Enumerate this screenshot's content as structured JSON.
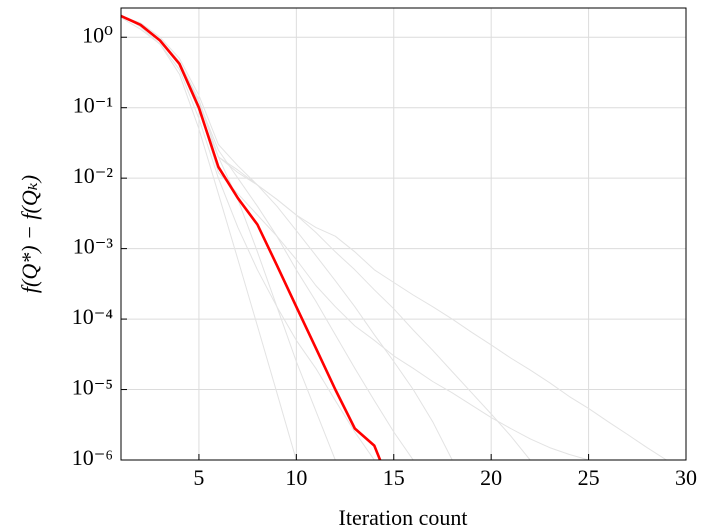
{
  "chart_data": {
    "type": "line",
    "log_y": true,
    "grid": true,
    "xlabel": "Iteration count",
    "ylabel": "f(Q*) − f(Qₖ)",
    "xlim": [
      1,
      30
    ],
    "xticks": [
      5,
      10,
      15,
      20,
      25,
      30
    ],
    "ylim": [
      1e-06,
      2.6
    ],
    "yticks": [
      {
        "value": 1,
        "label": "10⁰"
      },
      {
        "value": 0.1,
        "label": "10⁻¹"
      },
      {
        "value": 0.01,
        "label": "10⁻²"
      },
      {
        "value": 0.001,
        "label": "10⁻³"
      },
      {
        "value": 0.0001,
        "label": "10⁻⁴"
      },
      {
        "value": 1e-05,
        "label": "10⁻⁵"
      },
      {
        "value": 1e-06,
        "label": "10⁻⁶"
      }
    ],
    "series": [
      {
        "color": "#e3e3e3",
        "x": [
          1,
          2,
          3,
          4,
          5,
          6,
          7,
          8,
          9,
          10
        ],
        "values": [
          2.1,
          1.4,
          0.8,
          0.3,
          0.05,
          0.006,
          0.0007,
          8e-05,
          9e-06,
          1e-06
        ]
      },
      {
        "color": "#e3e3e3",
        "x": [
          1,
          2,
          3,
          4,
          5,
          6,
          7,
          8,
          9,
          10,
          11,
          12
        ],
        "values": [
          2,
          1.5,
          0.9,
          0.4,
          0.09,
          0.02,
          0.005,
          0.0009,
          0.00015,
          2.5e-05,
          5e-06,
          1e-06
        ]
      },
      {
        "color": "#e3e3e3",
        "x": [
          1,
          2,
          3,
          4,
          5,
          6,
          7,
          8,
          9,
          10,
          11,
          12,
          13,
          14,
          15,
          16
        ],
        "values": [
          2,
          1.5,
          0.9,
          0.45,
          0.12,
          0.025,
          0.01,
          0.004,
          0.0015,
          0.0005,
          0.00018,
          6e-05,
          2e-05,
          7e-06,
          2.5e-06,
          1e-06
        ]
      },
      {
        "color": "#e3e3e3",
        "x": [
          1,
          2,
          3,
          4,
          5,
          6,
          7,
          8,
          9,
          10,
          11,
          12,
          13,
          14,
          15,
          16,
          17,
          18
        ],
        "values": [
          2,
          1.6,
          1,
          0.5,
          0.15,
          0.03,
          0.015,
          0.008,
          0.004,
          0.0018,
          0.0008,
          0.00035,
          0.00015,
          6e-05,
          2.5e-05,
          1e-05,
          3.5e-06,
          1e-06
        ]
      },
      {
        "color": "#e3e3e3",
        "x": [
          1,
          2,
          3,
          4,
          5,
          6,
          7,
          8,
          9,
          10,
          11,
          12,
          13,
          14,
          15,
          16,
          17,
          18,
          19,
          20,
          21,
          22
        ],
        "values": [
          2,
          1.5,
          0.9,
          0.45,
          0.12,
          0.02,
          0.012,
          0.008,
          0.005,
          0.003,
          0.0017,
          0.0009,
          0.0005,
          0.00026,
          0.00014,
          7e-05,
          3.6e-05,
          1.8e-05,
          9e-06,
          4.5e-06,
          2.2e-06,
          1e-06
        ]
      },
      {
        "color": "#e3e3e3",
        "x": [
          1,
          2,
          3,
          4,
          5,
          6,
          7,
          8,
          9,
          10,
          11,
          12,
          13,
          14,
          15,
          16,
          17,
          18,
          19,
          20,
          21,
          22,
          23,
          24,
          25,
          26,
          27,
          28,
          29
        ],
        "values": [
          2,
          1.5,
          0.95,
          0.45,
          0.13,
          0.02,
          0.013,
          0.008,
          0.005,
          0.003,
          0.002,
          0.0015,
          0.0009,
          0.0005,
          0.00033,
          0.00022,
          0.00015,
          0.0001,
          6.5e-05,
          4.3e-05,
          2.8e-05,
          1.9e-05,
          1.25e-05,
          8e-06,
          5.4e-06,
          3.5e-06,
          2.3e-06,
          1.5e-06,
          1e-06
        ]
      },
      {
        "color": "#e3e3e3",
        "x": [
          1,
          2,
          3,
          4,
          5,
          6,
          7,
          8,
          9,
          10,
          11,
          12,
          13,
          14,
          15,
          16,
          17,
          18,
          19,
          20,
          21,
          22,
          23,
          24,
          25
        ],
        "values": [
          2,
          1.5,
          0.9,
          0.4,
          0.1,
          0.012,
          0.006,
          0.003,
          0.0015,
          0.0007,
          0.0003,
          0.00015,
          8e-05,
          5e-05,
          3e-05,
          2e-05,
          1.3e-05,
          9e-06,
          6e-06,
          4e-06,
          2.8e-06,
          2e-06,
          1.5e-06,
          1.2e-06,
          1e-06
        ]
      },
      {
        "color": "#e3e3e3",
        "x": [
          1,
          2,
          3,
          4,
          5,
          6,
          7,
          8,
          9,
          10,
          11,
          12,
          13,
          14
        ],
        "values": [
          1.9,
          1.3,
          0.8,
          0.35,
          0.07,
          0.01,
          0.002,
          0.0005,
          0.00015,
          5e-05,
          2e-05,
          7e-06,
          2.5e-06,
          1e-06
        ]
      },
      {
        "color": "#ff0000",
        "x": [
          1,
          2,
          3,
          4,
          5,
          6,
          7,
          8,
          9,
          10,
          11,
          12,
          13,
          14,
          14.3
        ],
        "values": [
          2,
          1.5,
          0.9,
          0.42,
          0.1,
          0.0144,
          0.0052,
          0.0022,
          0.00058,
          0.00015,
          3.9e-05,
          1e-05,
          2.8e-06,
          1.6e-06,
          1e-06
        ]
      }
    ]
  }
}
